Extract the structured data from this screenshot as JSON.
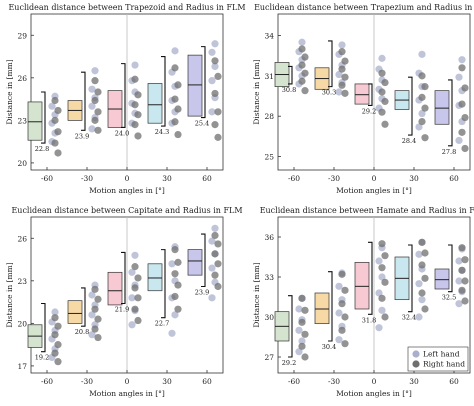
{
  "legend": {
    "left_label": "Left hand",
    "right_label": "Right hand",
    "left_color": "#aab0cc",
    "right_color": "#6f6f6f"
  },
  "chart_data": [
    {
      "type": "box",
      "title": "Euclidean distance between Trapezoid and Radius in FLM",
      "xlabel": "Motion angles in [°]",
      "ylabel": "Distance in [mm]",
      "x_ticks": [
        "-60",
        "-30",
        "0",
        "30",
        "60"
      ],
      "y_ticks": [
        20,
        23,
        26,
        29
      ],
      "ylim": [
        19.5,
        30.5
      ],
      "grid": false,
      "categories": [
        "-60",
        "-30",
        "0",
        "30",
        "60"
      ],
      "box_colors": [
        "#d4e4cf",
        "#f7d9a6",
        "#f6c9d3",
        "#c8e7ee",
        "#c8c6ea"
      ],
      "boxes": [
        {
          "q1": 21.6,
          "median": 22.9,
          "q3": 24.3
        },
        {
          "q1": 23.0,
          "median": 23.7,
          "q3": 24.4
        },
        {
          "q1": 22.5,
          "median": 23.8,
          "q3": 25.1
        },
        {
          "q1": 22.8,
          "median": 24.1,
          "q3": 25.6
        },
        {
          "q1": 23.3,
          "median": 25.5,
          "q3": 27.6
        }
      ],
      "annotations": [
        "22.8",
        "23.9",
        "24.0",
        "24.3",
        "25.4"
      ],
      "brackets": [
        [
          21.4,
          25.0
        ],
        [
          22.3,
          26.4
        ],
        [
          22.5,
          27.0
        ],
        [
          22.6,
          27.5
        ],
        [
          23.2,
          28.2
        ]
      ],
      "left_hand": [
        [
          21.5,
          22.1,
          22.8,
          23.4,
          24.0,
          24.7
        ],
        [
          22.4,
          23.2,
          24.0,
          24.6,
          25.2,
          26.5
        ],
        [
          22.8,
          23.5,
          24.2,
          25.0,
          25.8,
          26.9
        ],
        [
          22.8,
          23.6,
          24.4,
          25.4,
          26.4,
          27.9
        ],
        [
          23.6,
          24.6,
          25.8,
          26.8,
          27.8,
          28.4
        ]
      ],
      "right_hand": [
        [
          20.7,
          21.4,
          22.2,
          23.0,
          23.7,
          24.4
        ],
        [
          22.3,
          23.0,
          23.6,
          24.4,
          25.0,
          25.8
        ],
        [
          21.9,
          22.7,
          23.4,
          24.1,
          24.8,
          25.9
        ],
        [
          22.0,
          22.9,
          23.8,
          24.5,
          25.5,
          26.7
        ],
        [
          21.8,
          22.7,
          23.6,
          24.9,
          26.1,
          27.2
        ]
      ]
    },
    {
      "type": "box",
      "title": "Euclidean distance between Trapezium and Radius in FLM",
      "xlabel": "Motion angles in [°]",
      "ylabel": "Distance in [mm]",
      "x_ticks": [
        "-60",
        "-30",
        "0",
        "30",
        "60"
      ],
      "y_ticks": [
        25,
        28,
        31,
        34
      ],
      "ylim": [
        24.0,
        35.6
      ],
      "grid": false,
      "categories": [
        "-60",
        "-30",
        "0",
        "30",
        "60"
      ],
      "box_colors": [
        "#d4e4cf",
        "#f7d9a6",
        "#f6c9d3",
        "#c8e7ee",
        "#c8c6ea"
      ],
      "boxes": [
        {
          "q1": 30.2,
          "median": 31.1,
          "q3": 32.0
        },
        {
          "q1": 30.0,
          "median": 30.8,
          "q3": 31.6
        },
        {
          "q1": 28.9,
          "median": 29.6,
          "q3": 30.4
        },
        {
          "q1": 28.5,
          "median": 29.2,
          "q3": 29.9
        },
        {
          "q1": 27.4,
          "median": 28.6,
          "q3": 29.9
        }
      ],
      "annotations": [
        "30.8",
        "30.3",
        "29.2",
        "28.4",
        "27.8"
      ],
      "brackets": [
        [
          30.4,
          31.7
        ],
        [
          30.2,
          33.6
        ],
        [
          28.8,
          30.4
        ],
        [
          26.6,
          30.9
        ],
        [
          25.8,
          30.7
        ]
      ],
      "left_hand": [
        [
          30.4,
          31.0,
          31.6,
          32.2,
          32.8,
          33.5
        ],
        [
          29.8,
          30.5,
          31.1,
          31.8,
          32.6,
          33.3
        ],
        [
          28.6,
          29.3,
          30.0,
          30.7,
          31.5,
          32.3
        ],
        [
          27.2,
          28.2,
          29.2,
          30.2,
          31.2,
          32.6
        ],
        [
          26.2,
          27.6,
          28.8,
          29.9,
          30.9,
          32.2
        ]
      ],
      "right_hand": [
        [
          29.9,
          30.6,
          31.2,
          31.8,
          32.4,
          33.0
        ],
        [
          29.7,
          30.3,
          30.9,
          31.5,
          32.1,
          32.8
        ],
        [
          27.4,
          28.3,
          29.1,
          29.8,
          30.5,
          31.2
        ],
        [
          26.4,
          27.6,
          28.6,
          29.4,
          30.2,
          31.0
        ],
        [
          25.6,
          26.8,
          27.9,
          28.9,
          30.1,
          31.6
        ]
      ]
    },
    {
      "type": "box",
      "title": "Euclidean distance between Capitate and Radius in FLM",
      "xlabel": "Motion angles in [°]",
      "ylabel": "Distance in [mm]",
      "x_ticks": [
        "-60",
        "-30",
        "0",
        "30",
        "60"
      ],
      "y_ticks": [
        17,
        20,
        23,
        26
      ],
      "ylim": [
        16.5,
        27.5
      ],
      "grid": false,
      "categories": [
        "-60",
        "-30",
        "0",
        "30",
        "60"
      ],
      "box_colors": [
        "#d4e4cf",
        "#f7d9a6",
        "#f6c9d3",
        "#c8e7ee",
        "#c8c6ea"
      ],
      "boxes": [
        {
          "q1": 18.3,
          "median": 19.1,
          "q3": 19.9
        },
        {
          "q1": 20.0,
          "median": 20.7,
          "q3": 21.6
        },
        {
          "q1": 21.3,
          "median": 22.3,
          "q3": 23.6
        },
        {
          "q1": 22.3,
          "median": 23.2,
          "q3": 24.2
        },
        {
          "q1": 23.4,
          "median": 24.4,
          "q3": 25.2
        }
      ],
      "annotations": [
        "19.2",
        "20.8",
        "21.9",
        "22.7",
        "23.9"
      ],
      "brackets": [
        [
          18.0,
          21.4
        ],
        [
          19.8,
          22.5
        ],
        [
          21.4,
          25.0
        ],
        [
          20.4,
          25.2
        ],
        [
          22.6,
          26.3
        ]
      ],
      "left_hand": [
        [
          17.6,
          18.2,
          18.9,
          19.5,
          20.1,
          20.8
        ],
        [
          19.2,
          19.9,
          20.6,
          21.3,
          22.0,
          22.7
        ],
        [
          19.9,
          20.9,
          21.8,
          22.7,
          23.6,
          24.8
        ],
        [
          19.3,
          20.6,
          21.8,
          23.0,
          24.2,
          25.4
        ],
        [
          21.8,
          22.9,
          23.9,
          24.9,
          25.8,
          26.7
        ]
      ],
      "right_hand": [
        [
          17.3,
          17.9,
          18.5,
          19.2,
          19.8,
          20.4
        ],
        [
          19.0,
          19.6,
          20.3,
          21.0,
          21.7,
          22.4
        ],
        [
          20.2,
          21.0,
          21.8,
          22.5,
          23.2,
          24.0
        ],
        [
          21.0,
          21.9,
          22.7,
          23.5,
          24.3,
          25.2
        ],
        [
          22.6,
          23.4,
          24.2,
          24.9,
          25.6,
          26.2
        ]
      ]
    },
    {
      "type": "box",
      "title": "Euclidean distance between Hamate and Radius in FLM",
      "xlabel": "Motion angles in [°]",
      "ylabel": "Distance in [mm]",
      "x_ticks": [
        "-60",
        "-30",
        "0",
        "30",
        "60"
      ],
      "y_ticks": [
        27,
        30,
        33,
        36
      ],
      "ylim": [
        25.8,
        37.5
      ],
      "grid": false,
      "categories": [
        "-60",
        "-30",
        "0",
        "30",
        "60"
      ],
      "box_colors": [
        "#d4e4cf",
        "#f7d9a6",
        "#f6c9d3",
        "#c8e7ee",
        "#c8c6ea"
      ],
      "boxes": [
        {
          "q1": 28.2,
          "median": 29.3,
          "q3": 30.4
        },
        {
          "q1": 29.5,
          "median": 30.6,
          "q3": 31.8
        },
        {
          "q1": 30.6,
          "median": 32.3,
          "q3": 34.1
        },
        {
          "q1": 31.3,
          "median": 32.9,
          "q3": 34.5
        },
        {
          "q1": 32.1,
          "median": 32.8,
          "q3": 33.6
        }
      ],
      "annotations": [
        "29.2",
        "30.4",
        "31.8",
        "32.4",
        "32.5"
      ],
      "brackets": [
        [
          27.0,
          31.6
        ],
        [
          28.2,
          33.4
        ],
        [
          30.2,
          35.6
        ],
        [
          30.4,
          35.4
        ],
        [
          31.9,
          35.4
        ]
      ],
      "left_hand": [
        [
          27.4,
          28.2,
          29.0,
          29.8,
          30.6,
          31.4
        ],
        [
          28.3,
          29.3,
          30.3,
          31.3,
          32.3,
          33.3
        ],
        [
          29.2,
          30.5,
          31.8,
          33.0,
          34.2,
          35.2
        ],
        [
          30.0,
          31.3,
          32.5,
          33.6,
          34.7,
          35.6
        ],
        [
          31.0,
          31.9,
          32.7,
          33.5,
          34.2,
          35.1
        ]
      ],
      "right_hand": [
        [
          27.0,
          27.8,
          28.7,
          29.6,
          30.5,
          31.4
        ],
        [
          28.0,
          29.0,
          30.0,
          31.0,
          32.0,
          33.2
        ],
        [
          30.0,
          31.4,
          32.6,
          33.7,
          34.6,
          35.5
        ],
        [
          30.6,
          31.8,
          32.9,
          33.9,
          34.8,
          35.6
        ],
        [
          31.2,
          32.0,
          32.7,
          33.5,
          34.3,
          35.2
        ]
      ]
    }
  ]
}
